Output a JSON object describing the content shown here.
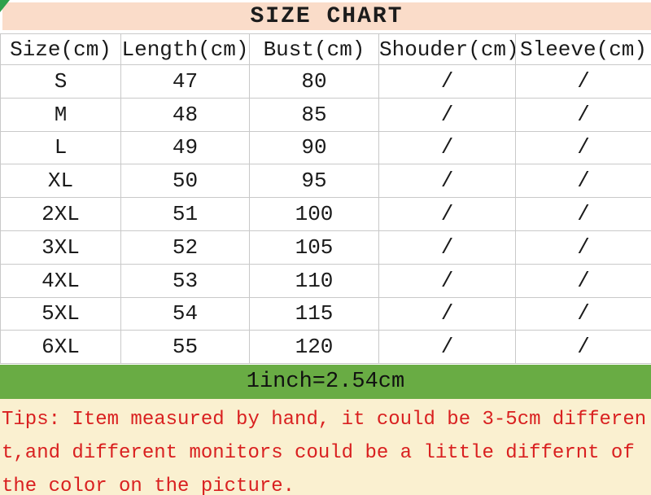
{
  "title": "SIZE CHART",
  "chart_data": {
    "type": "table",
    "title": "SIZE CHART",
    "columns": [
      "Size(cm)",
      "Length(cm)",
      "Bust(cm)",
      "Shouder(cm)",
      "Sleeve(cm)"
    ],
    "rows": [
      [
        "S",
        "47",
        "80",
        "/",
        "/"
      ],
      [
        "M",
        "48",
        "85",
        "/",
        "/"
      ],
      [
        "L",
        "49",
        "90",
        "/",
        "/"
      ],
      [
        "XL",
        "50",
        "95",
        "/",
        "/"
      ],
      [
        "2XL",
        "51",
        "100",
        "/",
        "/"
      ],
      [
        "3XL",
        "52",
        "105",
        "/",
        "/"
      ],
      [
        "4XL",
        "53",
        "110",
        "/",
        "/"
      ],
      [
        "5XL",
        "54",
        "115",
        "/",
        "/"
      ],
      [
        "6XL",
        "55",
        "120",
        "/",
        "/"
      ]
    ],
    "footnote": "1inch=2.54cm"
  },
  "banner": {
    "text": "1inch=2.54cm"
  },
  "tips": {
    "lines": [
      "Tips: Item measured by hand, it could be 3-5cm differen",
      "t,and different monitors could be a little differnt of",
      "the color on the picture."
    ]
  },
  "colors": {
    "title_band_bg": "#fadcc9",
    "banner_bg": "#69ac44",
    "tips_bg": "#faf0d0",
    "tips_text": "#d92020",
    "grid_line": "#c9c9c9",
    "corner_wedge": "#2fa14b"
  }
}
